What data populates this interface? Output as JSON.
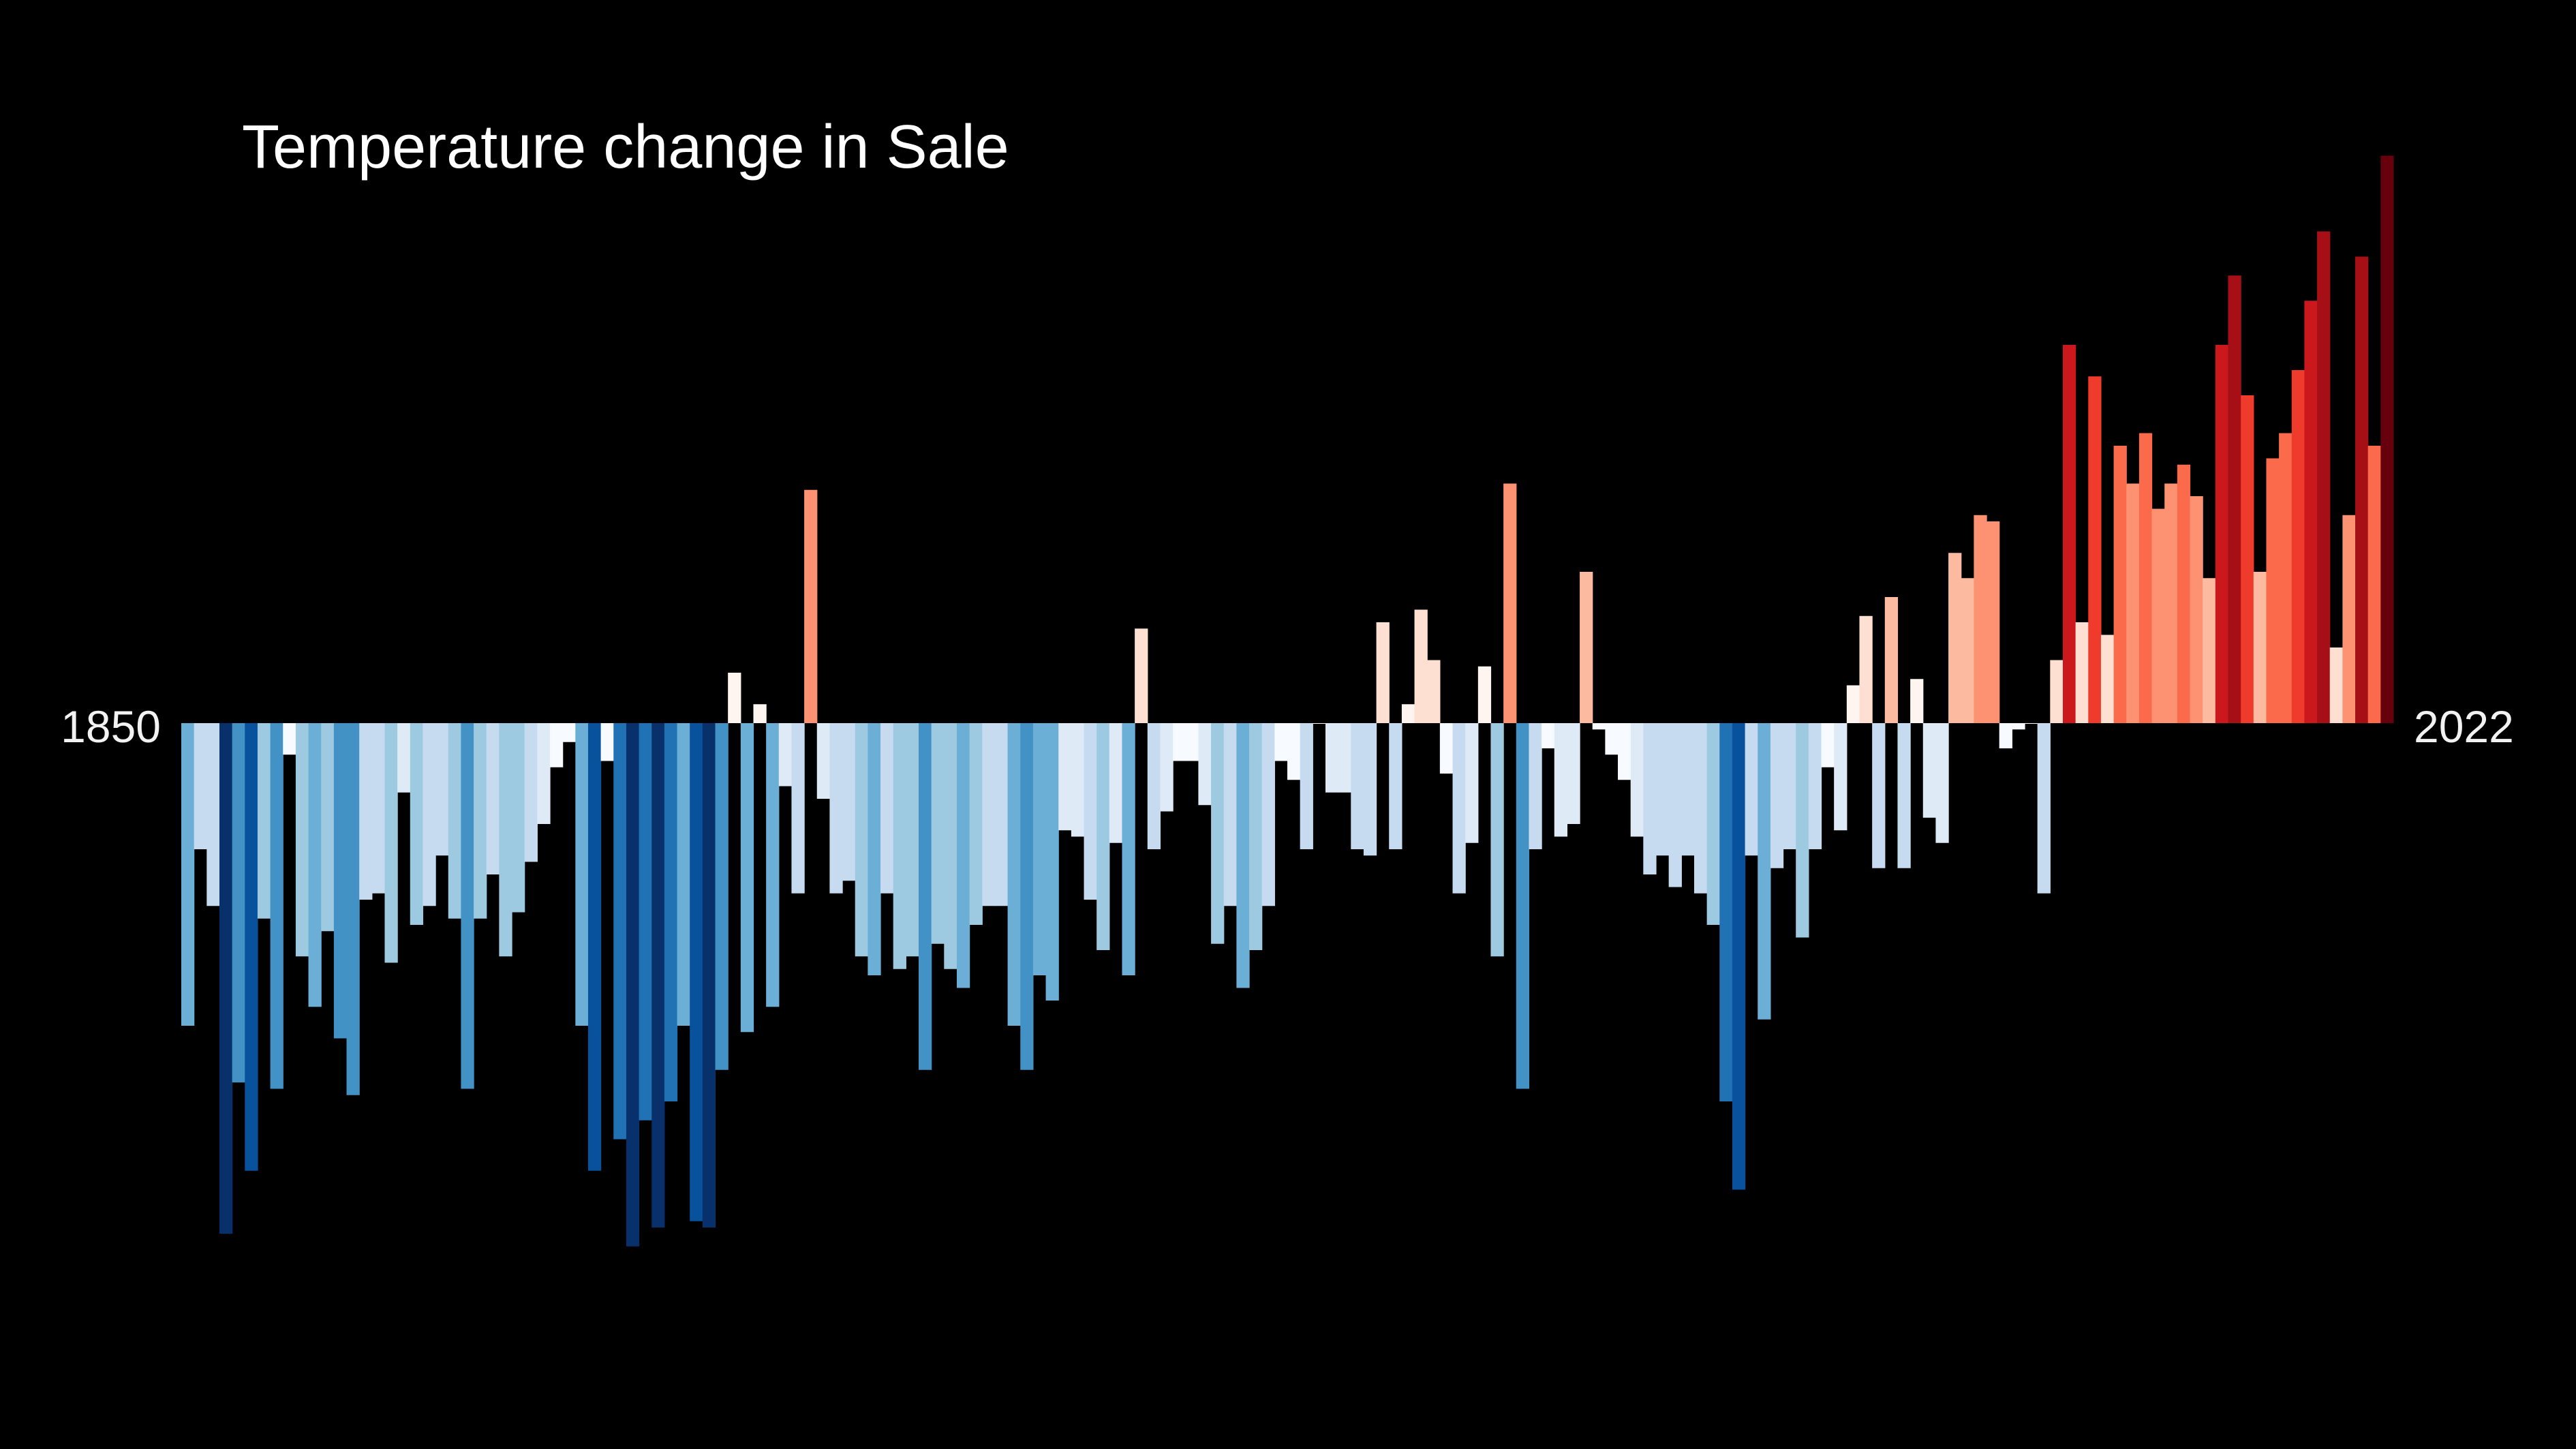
{
  "chart_data": {
    "type": "bar",
    "title": "Temperature change in Sale",
    "xlabel": "",
    "ylabel": "",
    "start_label": "1850",
    "end_label": "2022",
    "x_start": 1850,
    "x_end": 2022,
    "ylim": [
      -0.82,
      0.9
    ],
    "grid": false,
    "legend": "none",
    "values": [
      -0.48,
      -0.2,
      -0.29,
      -0.81,
      -0.57,
      -0.71,
      -0.31,
      -0.58,
      -0.05,
      -0.37,
      -0.45,
      -0.33,
      -0.5,
      -0.59,
      -0.28,
      -0.27,
      -0.38,
      -0.11,
      -0.32,
      -0.29,
      -0.21,
      -0.31,
      -0.58,
      -0.31,
      -0.24,
      -0.37,
      -0.3,
      -0.22,
      -0.16,
      -0.07,
      -0.03,
      -0.48,
      -0.71,
      -0.06,
      -0.66,
      -0.83,
      -0.63,
      -0.8,
      -0.6,
      -0.48,
      -0.79,
      -0.8,
      -0.55,
      0.08,
      -0.49,
      0.03,
      -0.45,
      -0.1,
      -0.27,
      0.37,
      -0.12,
      -0.27,
      -0.25,
      -0.37,
      -0.4,
      -0.27,
      -0.39,
      -0.37,
      -0.55,
      -0.35,
      -0.39,
      -0.42,
      -0.32,
      -0.29,
      -0.29,
      -0.48,
      -0.55,
      -0.4,
      -0.44,
      -0.17,
      -0.18,
      -0.28,
      -0.36,
      -0.19,
      -0.4,
      0.15,
      -0.2,
      -0.14,
      -0.06,
      -0.06,
      -0.13,
      -0.35,
      -0.29,
      -0.42,
      -0.36,
      -0.29,
      -0.06,
      -0.09,
      -0.2,
      0.0,
      -0.11,
      -0.11,
      -0.2,
      -0.21,
      0.16,
      -0.2,
      0.03,
      0.18,
      0.1,
      -0.08,
      -0.27,
      -0.19,
      0.09,
      -0.37,
      0.38,
      -0.58,
      -0.2,
      -0.04,
      -0.18,
      -0.16,
      0.24,
      -0.01,
      -0.05,
      -0.09,
      -0.18,
      -0.24,
      -0.21,
      -0.26,
      -0.21,
      -0.27,
      -0.32,
      -0.6,
      -0.74,
      -0.21,
      -0.47,
      -0.23,
      -0.2,
      -0.34,
      -0.2,
      -0.07,
      -0.17,
      0.06,
      0.17,
      -0.23,
      0.2,
      -0.23,
      0.07,
      -0.15,
      -0.19,
      0.27,
      0.23,
      0.33,
      0.32,
      -0.04,
      -0.01,
      0.0,
      -0.27,
      0.1,
      0.6,
      0.16,
      0.55,
      0.14,
      0.44,
      0.38,
      0.46,
      0.34,
      0.38,
      0.41,
      0.36,
      0.23,
      0.6,
      0.71,
      0.52,
      0.24,
      0.42,
      0.46,
      0.56,
      0.67,
      0.78,
      0.12,
      0.33,
      0.74,
      0.44,
      0.9
    ]
  }
}
